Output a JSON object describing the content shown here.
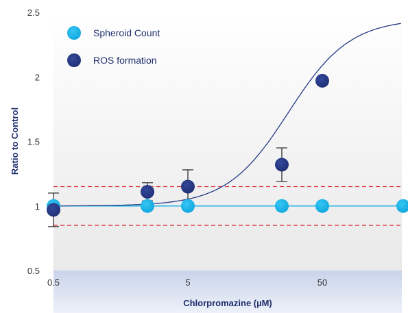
{
  "chart_data": {
    "type": "scatter",
    "xlabel": "Chlorpromazine (µM)",
    "ylabel": "Ratio to Control",
    "xscale": "log",
    "xlim": [
      0.5,
      200
    ],
    "ylim": [
      0.5,
      2.5
    ],
    "x_ticks": [
      0.5,
      5,
      50
    ],
    "x_tick_labels": [
      "0.5",
      "5",
      "50"
    ],
    "y_ticks": [
      0.5,
      1,
      1.5,
      2,
      2.5
    ],
    "y_tick_labels": [
      "0.5",
      "1",
      "1.5",
      "2",
      "2.5"
    ],
    "threshold_lines": [
      1.15,
      0.85
    ],
    "legend_position": "top-left",
    "grid": false,
    "series": [
      {
        "name": "Spheroid Count",
        "color": "#19b3e8",
        "x": [
          0.5,
          2.5,
          5,
          25,
          50,
          200
        ],
        "y": [
          1.0,
          1.0,
          1.0,
          1.0,
          1.0,
          1.0
        ],
        "fit": "flat"
      },
      {
        "name": "ROS formation",
        "color": "#263a86",
        "x": [
          0.5,
          2.5,
          5,
          25,
          50
        ],
        "y": [
          0.97,
          1.11,
          1.15,
          1.32,
          1.97
        ],
        "error": [
          0.13,
          0.07,
          0.13,
          0.13,
          null
        ],
        "fit": "sigmoid"
      }
    ]
  }
}
